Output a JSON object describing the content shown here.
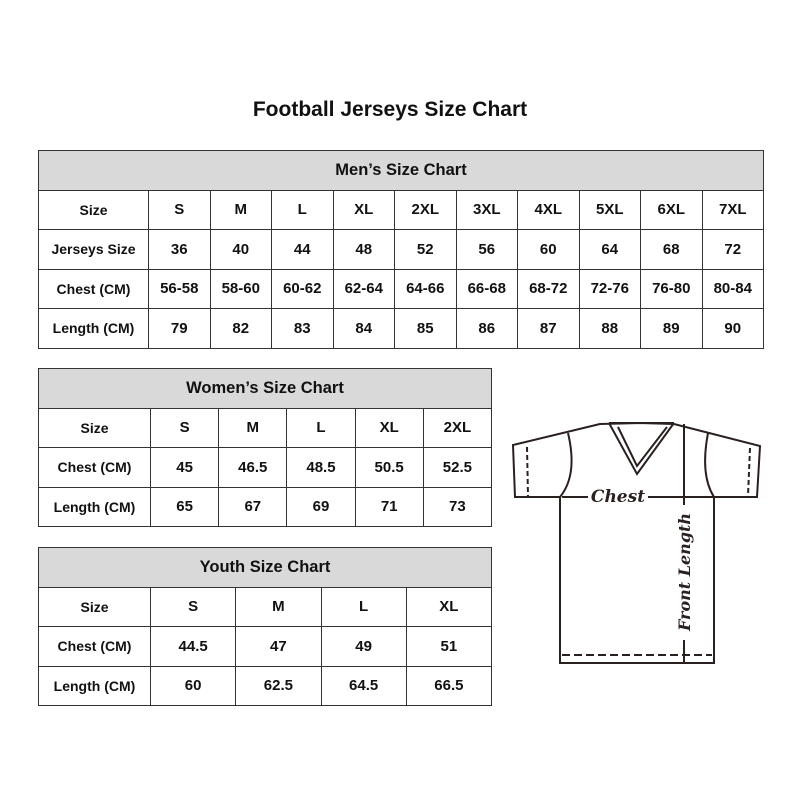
{
  "title": "Football Jerseys Size Chart",
  "men": {
    "heading": "Men’s Size Chart",
    "rows": [
      {
        "label": "Size",
        "values": [
          "S",
          "M",
          "L",
          "XL",
          "2XL",
          "3XL",
          "4XL",
          "5XL",
          "6XL",
          "7XL"
        ]
      },
      {
        "label": "Jerseys Size",
        "values": [
          "36",
          "40",
          "44",
          "48",
          "52",
          "56",
          "60",
          "64",
          "68",
          "72"
        ]
      },
      {
        "label": "Chest (CM)",
        "values": [
          "56-58",
          "58-60",
          "60-62",
          "62-64",
          "64-66",
          "66-68",
          "68-72",
          "72-76",
          "76-80",
          "80-84"
        ]
      },
      {
        "label": "Length (CM)",
        "values": [
          "79",
          "82",
          "83",
          "84",
          "85",
          "86",
          "87",
          "88",
          "89",
          "90"
        ]
      }
    ]
  },
  "women": {
    "heading": "Women’s Size Chart",
    "rows": [
      {
        "label": "Size",
        "values": [
          "S",
          "M",
          "L",
          "XL",
          "2XL"
        ]
      },
      {
        "label": "Chest (CM)",
        "values": [
          "45",
          "46.5",
          "48.5",
          "50.5",
          "52.5"
        ]
      },
      {
        "label": "Length (CM)",
        "values": [
          "65",
          "67",
          "69",
          "71",
          "73"
        ]
      }
    ]
  },
  "youth": {
    "heading": "Youth Size Chart",
    "rows": [
      {
        "label": "Size",
        "values": [
          "S",
          "M",
          "L",
          "XL"
        ]
      },
      {
        "label": "Chest (CM)",
        "values": [
          "44.5",
          "47",
          "49",
          "51"
        ]
      },
      {
        "label": "Length (CM)",
        "values": [
          "60",
          "62.5",
          "64.5",
          "66.5"
        ]
      }
    ]
  },
  "diagram": {
    "chest_label": "Chest",
    "length_label": "Front Length"
  }
}
